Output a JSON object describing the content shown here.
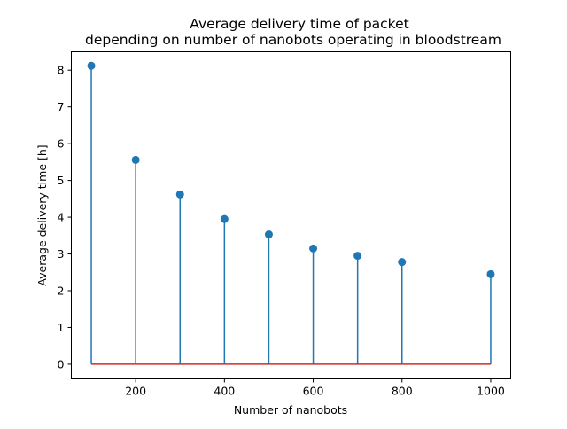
{
  "chart_data": {
    "type": "stem",
    "title": [
      "Average delivery time of packet",
      "depending on number of nanobots operating in bloodstream"
    ],
    "xlabel": "Number of nanobots",
    "ylabel": "Average delivery time [h]",
    "x": [
      100,
      200,
      300,
      400,
      500,
      600,
      700,
      800,
      1000
    ],
    "y": [
      8.12,
      5.56,
      4.62,
      3.95,
      3.53,
      3.15,
      2.95,
      2.78,
      2.45
    ],
    "xlim": [
      55,
      1045
    ],
    "ylim": [
      -0.4,
      8.5
    ],
    "xticks": [
      200,
      400,
      600,
      800,
      1000
    ],
    "yticks": [
      0,
      1,
      2,
      3,
      4,
      5,
      6,
      7,
      8
    ],
    "baseline": 0,
    "grid": false,
    "colors": {
      "stem": "#1f77b4",
      "marker": "#1f77b4",
      "baseline": "#d62728"
    }
  }
}
